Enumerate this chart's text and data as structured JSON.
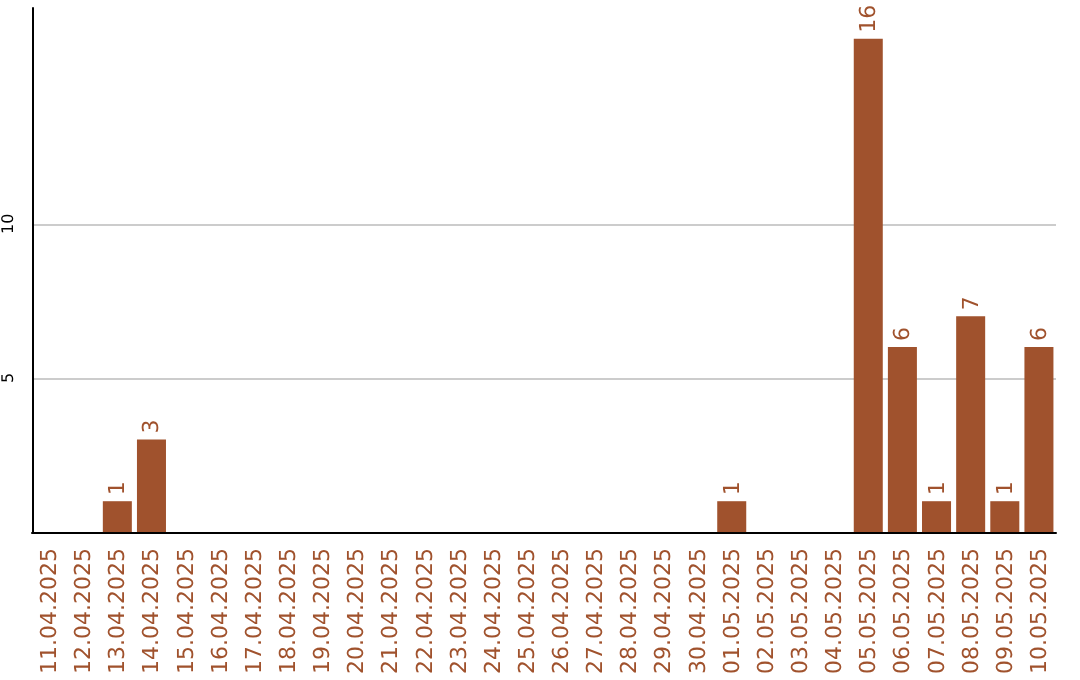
{
  "chart_data": {
    "type": "bar",
    "categories": [
      "11.04.2025",
      "12.04.2025",
      "13.04.2025",
      "14.04.2025",
      "15.04.2025",
      "16.04.2025",
      "17.04.2025",
      "18.04.2025",
      "19.04.2025",
      "20.04.2025",
      "21.04.2025",
      "22.04.2025",
      "23.04.2025",
      "24.04.2025",
      "25.04.2025",
      "26.04.2025",
      "27.04.2025",
      "28.04.2025",
      "29.04.2025",
      "30.04.2025",
      "01.05.2025",
      "02.05.2025",
      "03.05.2025",
      "04.05.2025",
      "05.05.2025",
      "06.05.2025",
      "07.05.2025",
      "08.05.2025",
      "09.05.2025",
      "10.05.2025"
    ],
    "values": [
      0,
      0,
      1,
      3,
      0,
      0,
      0,
      0,
      0,
      0,
      0,
      0,
      0,
      0,
      0,
      0,
      0,
      0,
      0,
      0,
      1,
      0,
      0,
      0,
      16,
      6,
      1,
      7,
      1,
      6
    ],
    "value_labels": [
      null,
      null,
      "1",
      "3",
      null,
      null,
      null,
      null,
      null,
      null,
      null,
      null,
      null,
      null,
      null,
      null,
      null,
      null,
      null,
      null,
      "1",
      null,
      null,
      null,
      "16",
      "6",
      "1",
      "7",
      "1",
      "6"
    ],
    "color": "#a0522d",
    "ylim": [
      0,
      17
    ],
    "yticks": [
      5,
      10
    ],
    "grid": "y"
  }
}
